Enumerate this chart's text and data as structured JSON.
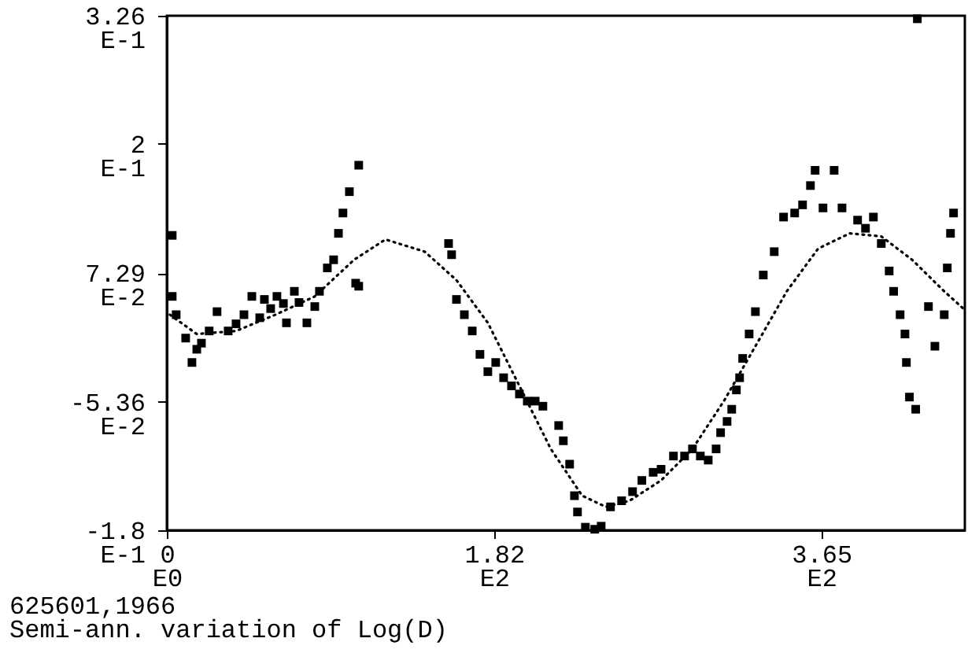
{
  "chart_data": {
    "type": "scatter",
    "annotations": [
      "625601,1966",
      "Semi-ann. variation of Log(D)"
    ],
    "xlim": [
      0,
      445
    ],
    "xticks": [
      {
        "value": 0,
        "label": "0E0"
      },
      {
        "value": 182.5,
        "label": "1.82E2"
      },
      {
        "value": 365,
        "label": "3.65E2"
      }
    ],
    "ylim": [
      -0.18,
      0.326
    ],
    "yticks": [
      {
        "value": -0.18,
        "label": "-1.8E-1"
      },
      {
        "value": -0.0536,
        "label": "-5.36E-2"
      },
      {
        "value": 0.0729,
        "label": "7.29E-2"
      },
      {
        "value": 0.2,
        "label": "2E-1"
      },
      {
        "value": 0.326,
        "label": "3.26E-1"
      }
    ],
    "series": [
      {
        "type": "scatter",
        "marker": "square",
        "color": "#000000",
        "x": [
          3,
          3,
          5.2,
          10.5,
          14.0,
          16.7,
          19.3,
          23.6,
          28.0,
          34.2,
          38.6,
          43.0,
          47.4,
          51.8,
          54.4,
          57.9,
          61.4,
          65.0,
          66.7,
          71.1,
          73.7,
          78.1,
          82.5,
          85.1,
          89.5,
          93.0,
          95.7,
          98.2,
          101.8,
          107.0,
          105.3,
          107.0,
          157.1,
          158.8,
          161.5,
          165.9,
          170.3,
          174.6,
          179.0,
          183.4,
          187.8,
          192.2,
          196.6,
          201.0,
          205.4,
          209.7,
          218.5,
          221.1,
          224.6,
          227.3,
          229.0,
          233.4,
          238.6,
          242.2,
          247.4,
          253.6,
          259.7,
          264.9,
          271.2,
          275.6,
          282.5,
          288.7,
          293.1,
          297.5,
          301.9,
          306.3,
          308.8,
          312.4,
          315.0,
          317.6,
          319.4,
          321.1,
          324.7,
          328.2,
          332.6,
          338.7,
          343.9,
          350.1,
          354.5,
          358.9,
          361.5,
          365.9,
          372.1,
          376.5,
          385.2,
          389.6,
          394.0,
          398.4,
          402.8,
          405.3,
          408.9,
          411.6,
          412.4,
          414.1,
          417.6,
          418.5,
          424.7,
          428.3,
          433.5,
          435.2,
          437.0,
          438.7
        ],
        "values": [
          0.11,
          0.05,
          0.032,
          0.009,
          -0.015,
          -0.002,
          0.004,
          0.016,
          0.035,
          0.016,
          0.023,
          0.032,
          0.05,
          0.029,
          0.047,
          0.038,
          0.05,
          0.043,
          0.024,
          0.055,
          0.044,
          0.024,
          0.04,
          0.055,
          0.078,
          0.086,
          0.112,
          0.132,
          0.153,
          0.179,
          0.063,
          0.06,
          0.102,
          0.091,
          0.047,
          0.032,
          0.016,
          -0.007,
          -0.024,
          -0.015,
          -0.03,
          -0.038,
          -0.046,
          -0.053,
          -0.053,
          -0.058,
          -0.077,
          -0.092,
          -0.115,
          -0.146,
          -0.162,
          -0.177,
          -0.179,
          -0.176,
          -0.157,
          -0.151,
          -0.142,
          -0.131,
          -0.123,
          -0.12,
          -0.107,
          -0.107,
          -0.1,
          -0.107,
          -0.111,
          -0.1,
          -0.084,
          -0.073,
          -0.061,
          -0.042,
          -0.03,
          -0.011,
          0.013,
          0.035,
          0.071,
          0.094,
          0.128,
          0.132,
          0.14,
          0.159,
          0.174,
          0.137,
          0.174,
          0.137,
          0.125,
          0.117,
          0.128,
          0.102,
          0.075,
          0.055,
          0.032,
          0.013,
          -0.015,
          -0.049,
          -0.061,
          0.323,
          0.04,
          0.001,
          0.032,
          0.078,
          0.112,
          0.132
        ]
      },
      {
        "type": "line",
        "line_style": "dotted",
        "color": "#000000",
        "x": [
          1.7,
          16.7,
          38.6,
          60.6,
          82.5,
          104.4,
          121.9,
          143.8,
          161.5,
          179.0,
          196.6,
          214.1,
          231.6,
          244.8,
          258.0,
          275.6,
          293.1,
          310.6,
          328.2,
          345.7,
          363.2,
          380.8,
          398.4,
          415.6,
          433.5,
          444.8
        ],
        "values": [
          0.032,
          0.013,
          0.016,
          0.032,
          0.05,
          0.086,
          0.106,
          0.094,
          0.066,
          0.024,
          -0.038,
          -0.1,
          -0.146,
          -0.157,
          -0.151,
          -0.131,
          -0.1,
          -0.053,
          0.001,
          0.055,
          0.097,
          0.112,
          0.109,
          0.086,
          0.055,
          0.037
        ]
      }
    ]
  }
}
